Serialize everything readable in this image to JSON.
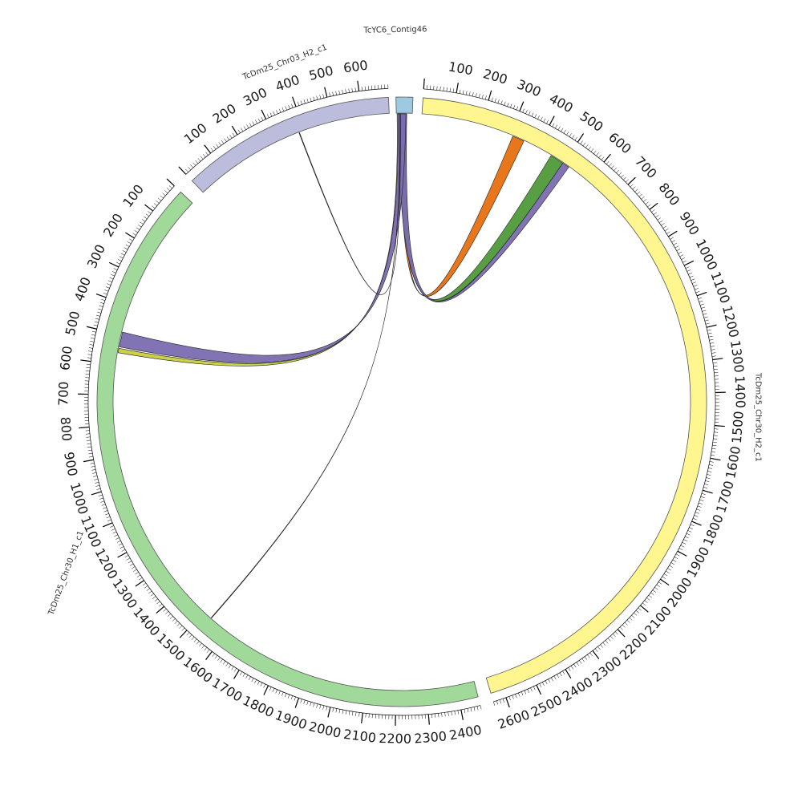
{
  "diagram": {
    "type": "circos",
    "segments": [
      {
        "id": "contig46",
        "name": "TcYC6_Contig46",
        "color": "#9ecae1",
        "length": 40,
        "major_step": 100,
        "minor_step": 10,
        "show_scale": false
      },
      {
        "id": "chr30h2",
        "name": "TcDm25_Chr30_H2_c1",
        "color": "#fff68f",
        "length": 2640,
        "major_step": 100,
        "minor_step": 10,
        "show_scale": true
      },
      {
        "id": "chr30h1",
        "name": "TcDm25_Chr30_H1_c1",
        "color": "#a1d99b",
        "length": 2460,
        "major_step": 100,
        "minor_step": 10,
        "show_scale": true,
        "reversed": true
      },
      {
        "id": "chr03h2",
        "name": "TcDm25_Chr03_H2_c1",
        "color": "#bcbddc",
        "length": 690,
        "major_step": 100,
        "minor_step": 10,
        "show_scale": true
      }
    ],
    "links": [
      {
        "color": "#e6700e",
        "source": {
          "segment": "contig46",
          "start": 8,
          "end": 20
        },
        "target": {
          "segment": "chr30h2",
          "start": 310,
          "end": 350
        }
      },
      {
        "color": "#4f9a3a",
        "source": {
          "segment": "contig46",
          "start": 6,
          "end": 24
        },
        "target": {
          "segment": "chr30h2",
          "start": 452,
          "end": 498
        }
      },
      {
        "color": "#7a6bb0",
        "source": {
          "segment": "contig46",
          "start": 4,
          "end": 26
        },
        "target": {
          "segment": "chr30h2",
          "start": 498,
          "end": 522
        }
      },
      {
        "color": "#c9cc3f",
        "source": {
          "segment": "contig46",
          "start": 2,
          "end": 8
        },
        "target": {
          "segment": "chr30h1",
          "start": 545,
          "end": 560
        }
      },
      {
        "color": "#7a6bb0",
        "source": {
          "segment": "contig46",
          "start": 4,
          "end": 24
        },
        "target": {
          "segment": "chr30h1",
          "start": 490,
          "end": 540
        }
      },
      {
        "color": "#8c1a1a",
        "source": {
          "segment": "contig46",
          "start": 9,
          "end": 9.5
        },
        "target": {
          "segment": "chr30h1",
          "start": 1530,
          "end": 1532
        }
      },
      {
        "color": "#222222",
        "source": {
          "segment": "chr03h2",
          "start": 380,
          "end": 382
        },
        "target": {
          "segment": "contig46",
          "start": 10,
          "end": 10.5
        }
      }
    ]
  }
}
